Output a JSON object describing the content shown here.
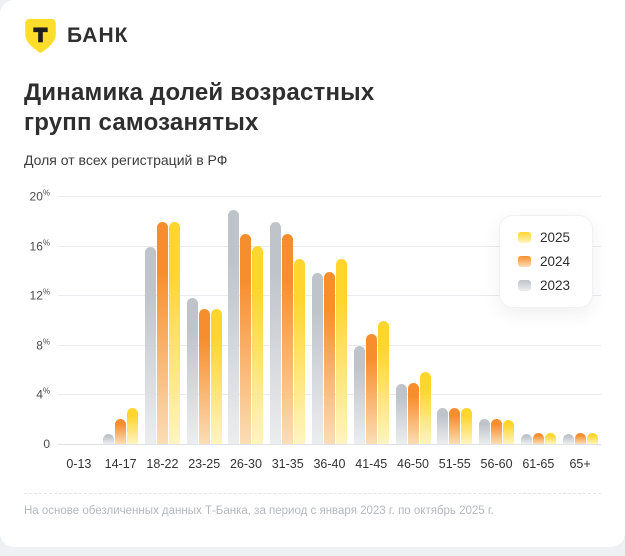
{
  "header": {
    "logo": {
      "brand_letter": "Т",
      "brand_name": "БАНК",
      "shield_color": "#FFDD2D",
      "letter_color": "#1f1f1f"
    },
    "title_line1": "Динамика долей возрастных",
    "title_line2": "групп самозанятых",
    "subtitle": "Доля от всех регистраций в РФ"
  },
  "chart_data": {
    "type": "bar",
    "title": "Динамика долей возрастных групп самозанятых",
    "subtitle": "Доля от всех регистраций в РФ",
    "categories": [
      "0-13",
      "14-17",
      "18-22",
      "23-25",
      "26-30",
      "31-35",
      "36-40",
      "41-45",
      "46-50",
      "51-55",
      "56-60",
      "61-65",
      "65+"
    ],
    "series": [
      {
        "name": "2023",
        "color_top": "#BFC4CB",
        "color_bottom": "#ECEDEF",
        "values": [
          0,
          0.8,
          15.9,
          11.8,
          18.9,
          17.9,
          13.8,
          7.9,
          4.8,
          2.9,
          2.0,
          0.8,
          0.8
        ]
      },
      {
        "name": "2024",
        "color_top": "#F78E2D",
        "color_bottom": "#FBDDB6",
        "values": [
          0,
          2.0,
          17.9,
          10.9,
          16.9,
          16.9,
          13.9,
          8.9,
          4.9,
          2.9,
          2.0,
          0.9,
          0.9
        ]
      },
      {
        "name": "2025",
        "color_top": "#FFD52E",
        "color_bottom": "#FFF4C2",
        "values": [
          0,
          2.9,
          17.9,
          10.9,
          16.0,
          14.9,
          14.9,
          9.9,
          5.8,
          2.9,
          1.9,
          0.9,
          0.9
        ]
      }
    ],
    "ylabel": "",
    "xlabel": "",
    "ylim": [
      0,
      20
    ],
    "yticks": [
      {
        "value": 20,
        "label": "20",
        "unit": "%"
      },
      {
        "value": 16,
        "label": "16",
        "unit": "%"
      },
      {
        "value": 12,
        "label": "12",
        "unit": "%"
      },
      {
        "value": 8,
        "label": "8",
        "unit": "%"
      },
      {
        "value": 4,
        "label": "4",
        "unit": "%"
      },
      {
        "value": 0,
        "label": "0",
        "unit": ""
      }
    ],
    "grid": true,
    "legend_position": "top-right",
    "legend_order": [
      "2025",
      "2024",
      "2023"
    ]
  },
  "footer": {
    "source_note": "На основе обезличенных данных Т-Банка, за период с января 2023 г. по октябрь 2025 г."
  }
}
